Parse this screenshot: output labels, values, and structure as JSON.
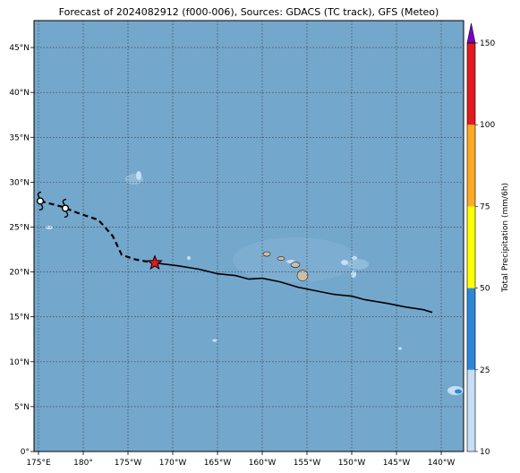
{
  "title": "Forecast of 2024082912 (f000-006), Sources: GDACS (TC track), GFS (Meteo)",
  "map": {
    "lon_range": [
      174.5,
      -137.5
    ],
    "lat_range": [
      0,
      48
    ],
    "lon_ticks": [
      "175°E",
      "180°",
      "175°W",
      "170°W",
      "165°W",
      "160°W",
      "155°W",
      "150°W",
      "145°W",
      "140°W"
    ],
    "lat_ticks": [
      "0°",
      "5°N",
      "10°N",
      "15°N",
      "20°N",
      "25°N",
      "30°N",
      "35°N",
      "40°N",
      "45°N"
    ],
    "gridlines": true,
    "ocean_color": "#74a7cc",
    "land_color": "#c8c0a8"
  },
  "track": {
    "past_forecast_dashed": [
      {
        "lon": 175.2,
        "lat": 27.9
      },
      {
        "lon": 177.5,
        "lat": 27.3
      },
      {
        "lon": 179.3,
        "lat": 26.6
      },
      {
        "lon": -178.3,
        "lat": 25.8
      },
      {
        "lon": -176.7,
        "lat": 24.0
      },
      {
        "lon": -175.7,
        "lat": 21.9
      },
      {
        "lon": -174.2,
        "lat": 21.4
      },
      {
        "lon": -172.0,
        "lat": 21.0
      }
    ],
    "forecast_solid": [
      {
        "lon": -172.0,
        "lat": 21.0
      },
      {
        "lon": -169.5,
        "lat": 20.7
      },
      {
        "lon": -167.0,
        "lat": 20.3
      },
      {
        "lon": -165.0,
        "lat": 19.8
      },
      {
        "lon": -163.0,
        "lat": 19.6
      },
      {
        "lon": -161.5,
        "lat": 19.2
      },
      {
        "lon": -160.0,
        "lat": 19.3
      },
      {
        "lon": -158.0,
        "lat": 18.9
      },
      {
        "lon": -156.0,
        "lat": 18.3
      },
      {
        "lon": -154.0,
        "lat": 17.9
      },
      {
        "lon": -152.0,
        "lat": 17.5
      },
      {
        "lon": -150.0,
        "lat": 17.3
      },
      {
        "lon": -148.5,
        "lat": 16.9
      },
      {
        "lon": -146.0,
        "lat": 16.5
      },
      {
        "lon": -144.0,
        "lat": 16.1
      },
      {
        "lon": -142.0,
        "lat": 15.8
      },
      {
        "lon": -141.0,
        "lat": 15.5
      }
    ],
    "cyclone_symbols": [
      {
        "lon": 175.2,
        "lat": 27.9
      },
      {
        "lon": 178.0,
        "lat": 27.1
      }
    ],
    "current_position": {
      "lon": -172.0,
      "lat": 21.0
    },
    "marker_color": "#e31a1c"
  },
  "colorbar": {
    "label": "Total Precipitation (mm/6h)",
    "tick_labels": [
      "10",
      "25",
      "50",
      "75",
      "100",
      "150"
    ],
    "bins": [
      {
        "from": 10,
        "to": 25,
        "color": "#c6def7"
      },
      {
        "from": 25,
        "to": 50,
        "color": "#2b88d8"
      },
      {
        "from": 50,
        "to": 75,
        "color": "#ffff00"
      },
      {
        "from": 75,
        "to": 100,
        "color": "#ffaa22"
      },
      {
        "from": 100,
        "to": 150,
        "color": "#e31a1c"
      }
    ],
    "extend_color": "#7b00c8"
  },
  "islands": [
    {
      "lon": -157.9,
      "lat": 21.5
    },
    {
      "lon": -159.5,
      "lat": 22.0
    },
    {
      "lon": -156.3,
      "lat": 20.8
    },
    {
      "lon": -155.5,
      "lat": 19.6
    }
  ]
}
